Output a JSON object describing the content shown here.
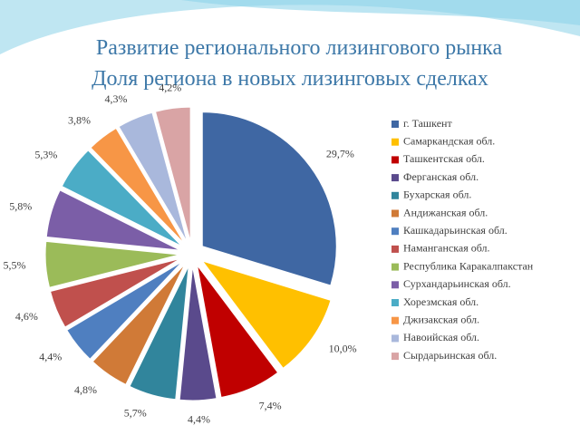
{
  "chart_data": {
    "type": "pie",
    "title": "Развитие регионального лизингового рынка",
    "subtitle": "Доля региона в новых лизинговых сделках",
    "categories": [
      "г. Ташкент",
      "Самаркандская обл.",
      "Ташкентская обл.",
      "Ферганская обл.",
      "Бухарская обл.",
      "Андижанская обл.",
      "Кашкадарьинская обл.",
      "Наманганская обл.",
      "Республика Каракалпакстан",
      "Сурхандарьинская обл.",
      "Хорезмская обл.",
      "Джизакская обл.",
      "Навоийская обл.",
      "Сырдарьинская обл."
    ],
    "values": [
      29.7,
      10.0,
      7.4,
      4.4,
      5.7,
      4.8,
      4.4,
      4.6,
      5.5,
      5.8,
      5.3,
      3.8,
      4.3,
      4.2
    ],
    "value_labels": [
      "29,7%",
      "10,0%",
      "7,4%",
      "4,4%",
      "5,7%",
      "4,8%",
      "4,4%",
      "4,6%",
      "5,5%",
      "5,8%",
      "5,3%",
      "3,8%",
      "4,3%",
      "4,2%"
    ],
    "colors": [
      "#3f67a3",
      "#ffc000",
      "#c00000",
      "#5a4a8c",
      "#31859c",
      "#d07a37",
      "#4f7fc0",
      "#c0504d",
      "#9bbb59",
      "#7b5ea7",
      "#4bacc6",
      "#f79646",
      "#a9b8dc",
      "#d9a4a5"
    ],
    "legend": "right"
  }
}
